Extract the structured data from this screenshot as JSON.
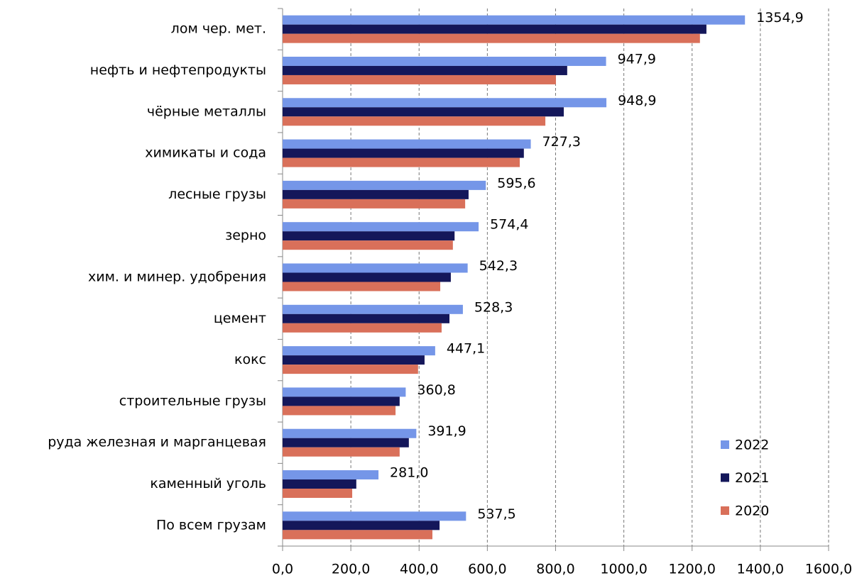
{
  "chart_data": {
    "type": "bar",
    "orientation": "horizontal",
    "categories": [
      "лом чер. мет.",
      "нефть и нефтепродукты",
      "чёрные металлы",
      "химикаты и сода",
      "лесные грузы",
      "зерно",
      "хим. и минер. удобрения",
      "цемент",
      "кокс",
      "строительные грузы",
      "руда железная и марганцевая",
      "каменный уголь",
      "По всем грузам"
    ],
    "series": [
      {
        "name": "2022",
        "color": "#7596e8",
        "values": [
          1354.9,
          947.9,
          948.9,
          727.3,
          595.6,
          574.4,
          542.3,
          528.3,
          447.1,
          360.8,
          391.9,
          281.0,
          537.5
        ],
        "value_labels": [
          "1354,9",
          "947,9",
          "948,9",
          "727,3",
          "595,6",
          "574,4",
          "542,3",
          "528,3",
          "447,1",
          "360,8",
          "391,9",
          "281,0",
          "537,5"
        ]
      },
      {
        "name": "2021",
        "color": "#14175a",
        "values": [
          1242,
          834,
          824,
          707,
          545,
          504,
          493,
          489,
          416,
          343,
          370,
          216,
          460
        ]
      },
      {
        "name": "2020",
        "color": "#d9705a",
        "values": [
          1223,
          801,
          770,
          695,
          535,
          499,
          462,
          466,
          397,
          331,
          343,
          204,
          439
        ]
      }
    ],
    "xlim": [
      0,
      1600
    ],
    "xticks": [
      {
        "value": 0,
        "label": "0,0"
      },
      {
        "value": 200,
        "label": "200,0"
      },
      {
        "value": 400,
        "label": "400,0"
      },
      {
        "value": 600,
        "label": "600,0"
      },
      {
        "value": 800,
        "label": "800,0"
      },
      {
        "value": 1000,
        "label": "1000,0"
      },
      {
        "value": 1200,
        "label": "1200,0"
      },
      {
        "value": 1400,
        "label": "1400,0"
      },
      {
        "value": 1600,
        "label": "1600,0"
      }
    ],
    "grid": true,
    "legend": "lower right"
  }
}
